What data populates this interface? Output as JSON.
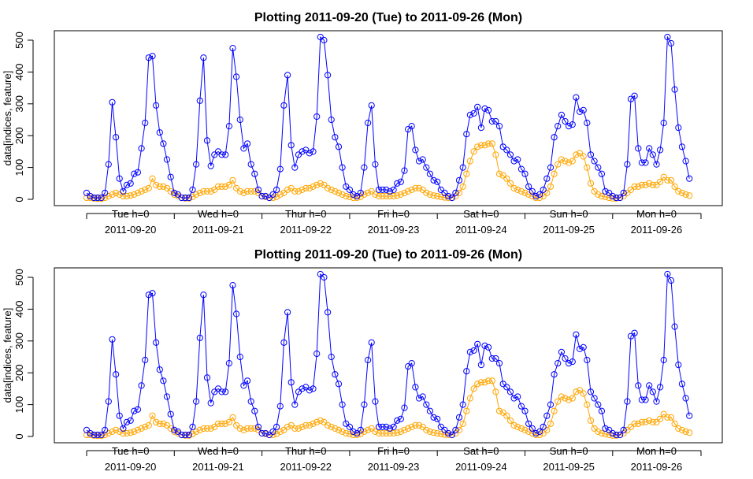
{
  "chart_data": [
    {
      "type": "line",
      "title": "Plotting 2011-09-20 (Tue) to 2011-09-26 (Mon)",
      "ylabel": "data[indices, feature]",
      "xlabel": "",
      "ylim": [
        0,
        520
      ],
      "yticks": [
        0,
        100,
        200,
        300,
        400,
        500
      ],
      "x_day_ticks": [
        {
          "line1": "Tue h=0",
          "line2": "2011-09-20"
        },
        {
          "line1": "Wed h=0",
          "line2": "2011-09-21"
        },
        {
          "line1": "Thur h=0",
          "line2": "2011-09-22"
        },
        {
          "line1": "Fri h=0",
          "line2": "2011-09-23"
        },
        {
          "line1": "Sat h=0",
          "line2": "2011-09-24"
        },
        {
          "line1": "Sun h=0",
          "line2": "2011-09-25"
        },
        {
          "line1": "Mon h=0",
          "line2": "2011-09-26"
        }
      ],
      "grid": false,
      "series": [
        {
          "name": "blue",
          "color": "#0000ff",
          "values": [
            20,
            10,
            5,
            5,
            5,
            20,
            110,
            305,
            195,
            65,
            25,
            45,
            50,
            80,
            85,
            160,
            240,
            445,
            450,
            295,
            210,
            175,
            125,
            70,
            20,
            15,
            5,
            5,
            5,
            30,
            110,
            310,
            445,
            185,
            105,
            140,
            150,
            140,
            140,
            230,
            475,
            385,
            250,
            160,
            175,
            110,
            80,
            30,
            10,
            10,
            5,
            15,
            30,
            95,
            295,
            390,
            170,
            100,
            140,
            150,
            155,
            145,
            150,
            260,
            510,
            500,
            390,
            250,
            195,
            165,
            100,
            40,
            30,
            15,
            10,
            20,
            100,
            240,
            295,
            110,
            30,
            30,
            30,
            25,
            30,
            50,
            55,
            90,
            220,
            230,
            155,
            120,
            125,
            100,
            80,
            60,
            55,
            30,
            20,
            10,
            5,
            20,
            60,
            100,
            205,
            265,
            270,
            290,
            225,
            285,
            280,
            245,
            245,
            230,
            165,
            155,
            140,
            120,
            125,
            95,
            80,
            40,
            25,
            10,
            15,
            30,
            65,
            100,
            195,
            230,
            265,
            245,
            230,
            235,
            320,
            275,
            280,
            240,
            140,
            120,
            100,
            80,
            25,
            20,
            10,
            5,
            5,
            20,
            110,
            315,
            325,
            160,
            115,
            115,
            160,
            140,
            110,
            155,
            240,
            510,
            490,
            345,
            225,
            165,
            120,
            65
          ]
        },
        {
          "name": "orange",
          "color": "#ffa500",
          "values": [
            5,
            5,
            3,
            2,
            2,
            5,
            10,
            15,
            20,
            15,
            10,
            10,
            12,
            15,
            20,
            25,
            30,
            35,
            65,
            45,
            40,
            40,
            35,
            25,
            15,
            10,
            5,
            3,
            3,
            8,
            15,
            20,
            25,
            25,
            25,
            30,
            40,
            40,
            40,
            45,
            60,
            35,
            25,
            20,
            25,
            25,
            25,
            20,
            10,
            8,
            5,
            5,
            8,
            15,
            20,
            30,
            35,
            25,
            25,
            30,
            35,
            35,
            40,
            45,
            50,
            45,
            35,
            30,
            25,
            20,
            15,
            10,
            8,
            5,
            5,
            8,
            15,
            20,
            25,
            15,
            10,
            10,
            10,
            10,
            10,
            12,
            15,
            20,
            25,
            30,
            35,
            35,
            30,
            20,
            15,
            12,
            10,
            8,
            6,
            5,
            5,
            10,
            20,
            40,
            80,
            120,
            150,
            165,
            170,
            170,
            175,
            175,
            140,
            80,
            75,
            65,
            50,
            35,
            30,
            25,
            20,
            15,
            10,
            5,
            5,
            10,
            20,
            40,
            80,
            110,
            125,
            120,
            115,
            120,
            140,
            145,
            135,
            100,
            50,
            25,
            15,
            10,
            8,
            5,
            3,
            3,
            5,
            10,
            20,
            30,
            40,
            40,
            45,
            45,
            50,
            45,
            45,
            55,
            70,
            60,
            60,
            40,
            25,
            20,
            15,
            12
          ]
        }
      ]
    },
    {
      "type": "line",
      "title": "Plotting 2011-09-20 (Tue) to 2011-09-26 (Mon)",
      "ylabel": "data[indices, feature]",
      "xlabel": "",
      "ylim": [
        0,
        520
      ],
      "yticks": [
        0,
        100,
        200,
        300,
        400,
        500
      ],
      "x_day_ticks": [
        {
          "line1": "Tue h=0",
          "line2": "2011-09-20"
        },
        {
          "line1": "Wed h=0",
          "line2": "2011-09-21"
        },
        {
          "line1": "Thur h=0",
          "line2": "2011-09-22"
        },
        {
          "line1": "Fri h=0",
          "line2": "2011-09-23"
        },
        {
          "line1": "Sat h=0",
          "line2": "2011-09-24"
        },
        {
          "line1": "Sun h=0",
          "line2": "2011-09-25"
        },
        {
          "line1": "Mon h=0",
          "line2": "2011-09-26"
        }
      ],
      "grid": false,
      "series": [
        {
          "name": "blue",
          "color": "#0000ff",
          "values": [
            20,
            10,
            5,
            5,
            5,
            20,
            110,
            305,
            195,
            65,
            25,
            45,
            50,
            80,
            85,
            160,
            240,
            445,
            450,
            295,
            210,
            175,
            125,
            70,
            20,
            15,
            5,
            5,
            5,
            30,
            110,
            310,
            445,
            185,
            105,
            140,
            150,
            140,
            140,
            230,
            475,
            385,
            250,
            160,
            175,
            110,
            80,
            30,
            10,
            10,
            5,
            15,
            30,
            95,
            295,
            390,
            170,
            100,
            140,
            150,
            155,
            145,
            150,
            260,
            510,
            500,
            390,
            250,
            195,
            165,
            100,
            40,
            30,
            15,
            10,
            20,
            100,
            240,
            295,
            110,
            30,
            30,
            30,
            25,
            30,
            50,
            55,
            90,
            220,
            230,
            155,
            120,
            125,
            100,
            80,
            60,
            55,
            30,
            20,
            10,
            5,
            20,
            60,
            100,
            205,
            265,
            270,
            290,
            225,
            285,
            280,
            245,
            245,
            230,
            165,
            155,
            140,
            120,
            125,
            95,
            80,
            40,
            25,
            10,
            15,
            30,
            65,
            100,
            195,
            230,
            265,
            245,
            230,
            235,
            320,
            275,
            280,
            240,
            140,
            120,
            100,
            80,
            25,
            20,
            10,
            5,
            5,
            20,
            110,
            315,
            325,
            160,
            115,
            115,
            160,
            140,
            110,
            155,
            240,
            510,
            490,
            345,
            225,
            165,
            120,
            65
          ]
        },
        {
          "name": "orange",
          "color": "#ffa500",
          "values": [
            5,
            5,
            3,
            2,
            2,
            5,
            10,
            15,
            20,
            15,
            10,
            10,
            12,
            15,
            20,
            25,
            30,
            35,
            65,
            45,
            40,
            40,
            35,
            25,
            15,
            10,
            5,
            3,
            3,
            8,
            15,
            20,
            25,
            25,
            25,
            30,
            40,
            40,
            40,
            45,
            60,
            35,
            25,
            20,
            25,
            25,
            25,
            20,
            10,
            8,
            5,
            5,
            8,
            15,
            20,
            30,
            35,
            25,
            25,
            30,
            35,
            35,
            40,
            45,
            50,
            45,
            35,
            30,
            25,
            20,
            15,
            10,
            8,
            5,
            5,
            8,
            15,
            20,
            25,
            15,
            10,
            10,
            10,
            10,
            10,
            12,
            15,
            20,
            25,
            30,
            35,
            35,
            30,
            20,
            15,
            12,
            10,
            8,
            6,
            5,
            5,
            10,
            20,
            40,
            80,
            120,
            150,
            165,
            170,
            170,
            175,
            175,
            140,
            80,
            75,
            65,
            50,
            35,
            30,
            25,
            20,
            15,
            10,
            5,
            5,
            10,
            20,
            40,
            80,
            110,
            125,
            120,
            115,
            120,
            140,
            145,
            135,
            100,
            50,
            25,
            15,
            10,
            8,
            5,
            3,
            3,
            5,
            10,
            20,
            30,
            40,
            40,
            45,
            45,
            50,
            45,
            45,
            55,
            70,
            60,
            60,
            40,
            25,
            20,
            15,
            12
          ]
        }
      ]
    }
  ]
}
